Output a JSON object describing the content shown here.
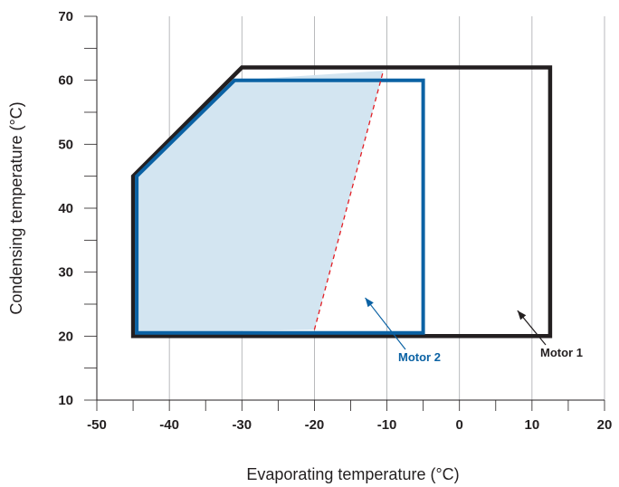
{
  "chart_data": {
    "type": "line",
    "xlabel": "Evaporating temperature (°C)",
    "ylabel": "Condensing temperature (°C)",
    "xlim": [
      -50,
      20
    ],
    "ylim": [
      10,
      70
    ],
    "x_ticks": [
      -50,
      -40,
      -30,
      -20,
      -10,
      0,
      10,
      20
    ],
    "y_ticks": [
      10,
      20,
      30,
      40,
      50,
      60,
      70
    ],
    "grid": "vertical only",
    "series": [
      {
        "name": "Motor 1",
        "color": "#231f20",
        "points": [
          [
            -45,
            20
          ],
          [
            -45,
            45
          ],
          [
            -30,
            62
          ],
          [
            12.5,
            62
          ],
          [
            12.5,
            20
          ]
        ],
        "closed": true
      },
      {
        "name": "Motor 2",
        "color": "#0b62a4",
        "points": [
          [
            -44.5,
            20.5
          ],
          [
            -44.5,
            45
          ],
          [
            -31,
            60
          ],
          [
            -5,
            60
          ],
          [
            -5,
            20.5
          ]
        ],
        "closed": true
      }
    ],
    "shaded_region": {
      "color": "#d3e5f1",
      "points": [
        [
          -44.5,
          20.5
        ],
        [
          -44.5,
          45
        ],
        [
          -31,
          60
        ],
        [
          -10.5,
          61.5
        ],
        [
          -20,
          21
        ]
      ]
    },
    "dashed_line": {
      "color": "#e31e24",
      "points": [
        [
          -20,
          21
        ],
        [
          -10.5,
          61.5
        ]
      ]
    },
    "annotations": [
      {
        "text": "Motor 2",
        "color": "#0b62a4",
        "arrow_to": [
          -13,
          26
        ]
      },
      {
        "text": "Motor 1",
        "color": "#231f20",
        "arrow_to": [
          8,
          24
        ]
      }
    ]
  }
}
